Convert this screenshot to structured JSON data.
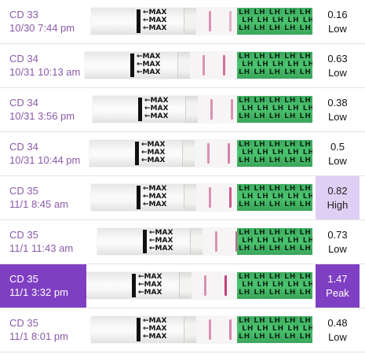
{
  "tests": [
    {
      "cycle_day": "CD 33",
      "datetime": "10/30 7:44 pm",
      "value": "0.16",
      "level": "Low",
      "fill": 0.16
    },
    {
      "cycle_day": "CD 34",
      "datetime": "10/31 10:13 am",
      "value": "0.63",
      "level": "Low",
      "fill": 0.63
    },
    {
      "cycle_day": "CD 34",
      "datetime": "10/31 3:56 pm",
      "value": "0.38",
      "level": "Low",
      "fill": 0.38
    },
    {
      "cycle_day": "CD 34",
      "datetime": "10/31 10:44 pm",
      "value": "0.5",
      "level": "Low",
      "fill": 0.5
    },
    {
      "cycle_day": "CD 35",
      "datetime": "11/1 8:45 am",
      "value": "0.82",
      "level": "High",
      "fill": 0.82
    },
    {
      "cycle_day": "CD 35",
      "datetime": "11/1 11:43 am",
      "value": "0.73",
      "level": "Low",
      "fill": 0.73
    },
    {
      "cycle_day": "CD 35",
      "datetime": "11/1 3:32 pm",
      "value": "1.47",
      "level": "Peak",
      "fill": 1.0,
      "selected": true
    },
    {
      "cycle_day": "CD 35",
      "datetime": "11/1 8:01 pm",
      "value": "0.48",
      "level": "Low",
      "fill": 0.48
    }
  ],
  "strip_text": {
    "arrow_label": "MAX",
    "green_label": "LH"
  },
  "colors": {
    "label_text": "#8a5aa8",
    "accent": "#7f3fc2",
    "high_badge": "#dfcff4",
    "test_line": "#c2407a",
    "strip_green": "#4cc46f"
  }
}
